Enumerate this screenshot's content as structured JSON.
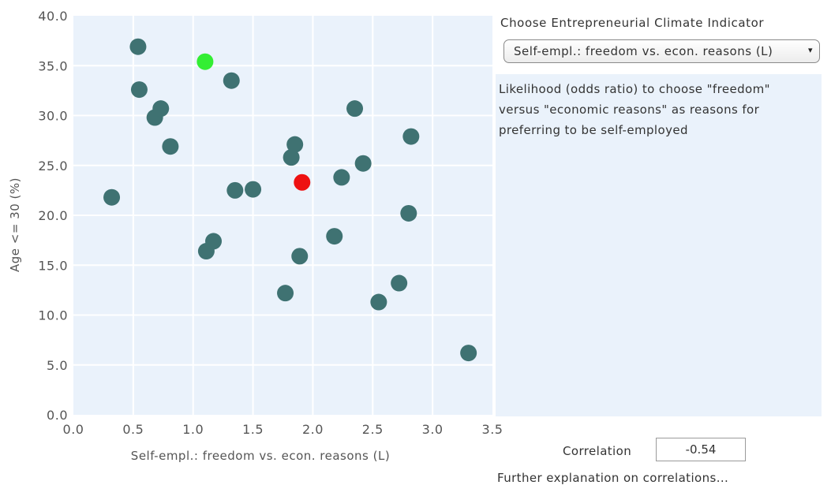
{
  "chart_data": {
    "type": "scatter",
    "xlabel": "Self-empl.: freedom vs. econ. reasons (L)",
    "ylabel": "Age <= 30 (%)",
    "xlim": [
      0.0,
      3.5
    ],
    "ylim": [
      0.0,
      40.0
    ],
    "xticks": [
      "0.0",
      "0.5",
      "1.0",
      "1.5",
      "2.0",
      "2.5",
      "3.0",
      "3.5"
    ],
    "yticks": [
      "0.0",
      "5.0",
      "10.0",
      "15.0",
      "20.0",
      "25.0",
      "30.0",
      "35.0",
      "40.0"
    ],
    "grid": true,
    "background": "#eaf2fb",
    "point_color": "#3f7272",
    "points": [
      {
        "x": 0.32,
        "y": 21.8
      },
      {
        "x": 0.54,
        "y": 36.9
      },
      {
        "x": 0.55,
        "y": 32.6
      },
      {
        "x": 0.68,
        "y": 29.8
      },
      {
        "x": 0.73,
        "y": 30.7
      },
      {
        "x": 0.81,
        "y": 26.9
      },
      {
        "x": 1.11,
        "y": 16.4
      },
      {
        "x": 1.17,
        "y": 17.4
      },
      {
        "x": 1.32,
        "y": 33.5
      },
      {
        "x": 1.35,
        "y": 22.5
      },
      {
        "x": 1.5,
        "y": 22.6
      },
      {
        "x": 1.77,
        "y": 12.2
      },
      {
        "x": 1.82,
        "y": 25.8
      },
      {
        "x": 1.85,
        "y": 27.1
      },
      {
        "x": 1.89,
        "y": 15.9
      },
      {
        "x": 2.18,
        "y": 17.9
      },
      {
        "x": 2.24,
        "y": 23.8
      },
      {
        "x": 2.35,
        "y": 30.7
      },
      {
        "x": 2.42,
        "y": 25.2
      },
      {
        "x": 2.55,
        "y": 11.3
      },
      {
        "x": 2.72,
        "y": 13.2
      },
      {
        "x": 2.8,
        "y": 20.2
      },
      {
        "x": 2.82,
        "y": 27.9
      },
      {
        "x": 3.3,
        "y": 6.2
      }
    ],
    "highlighted": [
      {
        "x": 1.1,
        "y": 35.4,
        "color": "#33ee33"
      },
      {
        "x": 1.91,
        "y": 23.3,
        "color": "#ee1111"
      }
    ]
  },
  "panel": {
    "heading": "Choose Entrepreneurial Climate Indicator",
    "selected_indicator": "Self-empl.: freedom vs. econ. reasons (L)",
    "dropdown_arrow": "▾",
    "description": "Likelihood (odds ratio) to choose \"freedom\" versus \"economic reasons\" as reasons for preferring to be self-employed",
    "correlation_label": "Correlation",
    "correlation_value": "-0.54",
    "further_link": "Further explanation on correlations..."
  }
}
